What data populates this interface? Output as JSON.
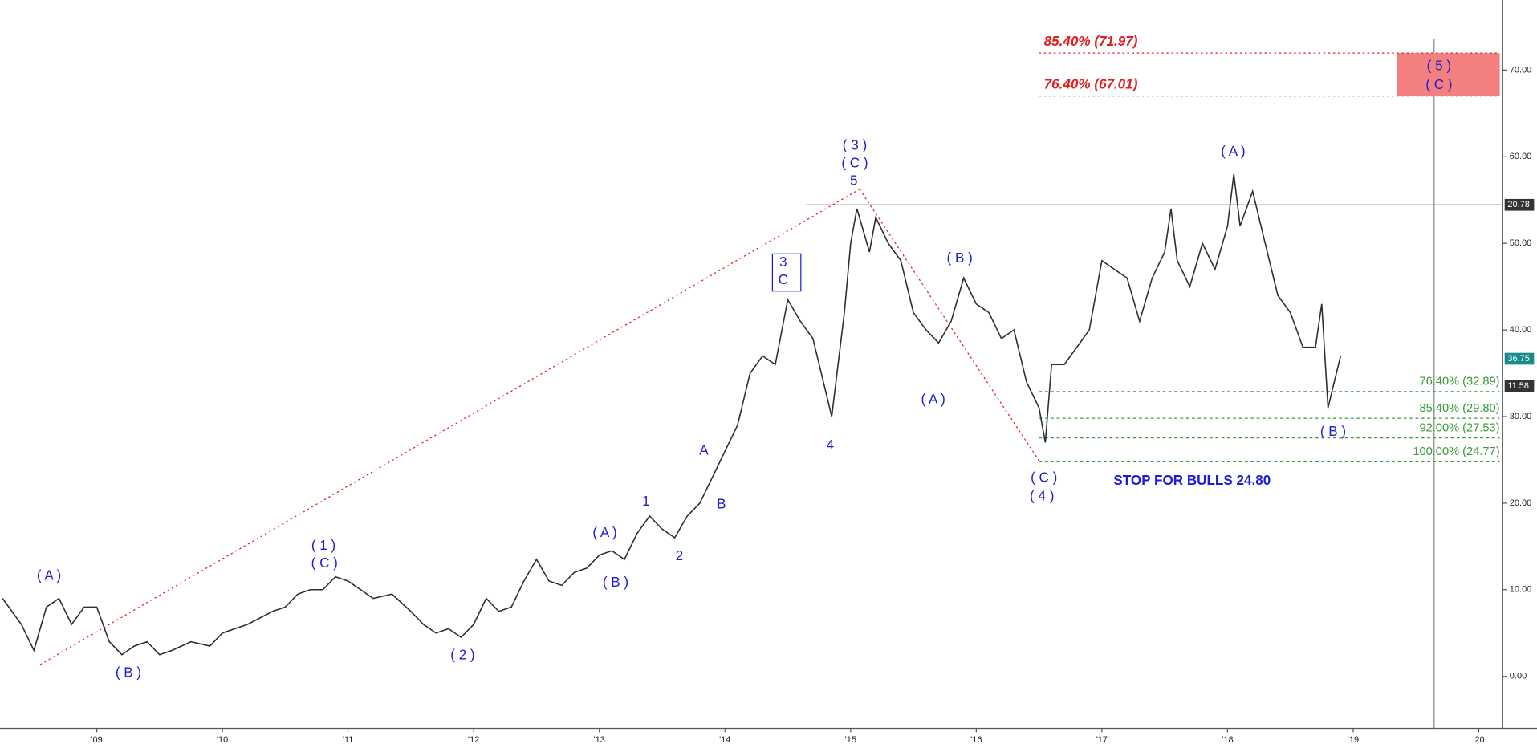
{
  "chart_data": {
    "type": "line",
    "color": "#2e2e2e",
    "x": [
      2008.25,
      2008.4,
      2008.5,
      2008.6,
      2008.7,
      2008.8,
      2008.9,
      2009.0,
      2009.1,
      2009.2,
      2009.3,
      2009.4,
      2009.5,
      2009.6,
      2009.75,
      2009.9,
      2010.0,
      2010.2,
      2010.4,
      2010.5,
      2010.6,
      2010.7,
      2010.8,
      2010.9,
      2011.0,
      2011.1,
      2011.2,
      2011.35,
      2011.5,
      2011.6,
      2011.7,
      2011.8,
      2011.9,
      2012.0,
      2012.1,
      2012.2,
      2012.3,
      2012.4,
      2012.5,
      2012.6,
      2012.7,
      2012.8,
      2012.9,
      2013.0,
      2013.1,
      2013.2,
      2013.3,
      2013.4,
      2013.5,
      2013.6,
      2013.7,
      2013.8,
      2013.9,
      2014.0,
      2014.1,
      2014.2,
      2014.3,
      2014.4,
      2014.5,
      2014.6,
      2014.7,
      2014.8,
      2014.85,
      2014.95,
      2015.0,
      2015.05,
      2015.15,
      2015.2,
      2015.3,
      2015.4,
      2015.5,
      2015.6,
      2015.7,
      2015.8,
      2015.9,
      2016.0,
      2016.1,
      2016.2,
      2016.3,
      2016.4,
      2016.5,
      2016.55,
      2016.6,
      2016.7,
      2016.8,
      2016.9,
      2017.0,
      2017.1,
      2017.2,
      2017.3,
      2017.4,
      2017.5,
      2017.55,
      2017.6,
      2017.7,
      2017.8,
      2017.9,
      2018.0,
      2018.05,
      2018.1,
      2018.2,
      2018.3,
      2018.4,
      2018.5,
      2018.6,
      2018.7,
      2018.75,
      2018.8,
      2018.85,
      2018.9
    ],
    "values": [
      9,
      6,
      3,
      8,
      9,
      6,
      8,
      8,
      4,
      2.5,
      3.5,
      4,
      2.5,
      3,
      4,
      3.5,
      5,
      6,
      7.5,
      8,
      9.5,
      10,
      10,
      11.5,
      11,
      10,
      9,
      9.5,
      7.5,
      6,
      5,
      5.5,
      4.5,
      6,
      9,
      7.5,
      8,
      11,
      13.5,
      11,
      10.5,
      12,
      12.5,
      14,
      14.5,
      13.5,
      16.5,
      18.5,
      17,
      16,
      18.5,
      20,
      23,
      26,
      29,
      35,
      37,
      36,
      43.5,
      41,
      39,
      33,
      30,
      42,
      50,
      54,
      49,
      53,
      50,
      48,
      42,
      40,
      38.5,
      41,
      46,
      43,
      42,
      39,
      40,
      34,
      31,
      27,
      36,
      36,
      38,
      40,
      48,
      47,
      46,
      41,
      46,
      49,
      54,
      48,
      45,
      50,
      47,
      52,
      58,
      52,
      56,
      50,
      44,
      42,
      38,
      38,
      43,
      31,
      34,
      37
    ],
    "xlim": [
      2008.23,
      2020.19
    ],
    "ylim": [
      -6,
      78.1
    ],
    "xticks": [
      {
        "value": 2009,
        "label": "'09"
      },
      {
        "value": 2010,
        "label": "'10"
      },
      {
        "value": 2011,
        "label": "'11"
      },
      {
        "value": 2012,
        "label": "'12"
      },
      {
        "value": 2013,
        "label": "'13"
      },
      {
        "value": 2014,
        "label": "'14"
      },
      {
        "value": 2015,
        "label": "'15"
      },
      {
        "value": 2016,
        "label": "'16"
      },
      {
        "value": 2017,
        "label": "'17"
      },
      {
        "value": 2018,
        "label": "'18"
      },
      {
        "value": 2019,
        "label": "'19"
      },
      {
        "value": 2020,
        "label": "'20"
      }
    ],
    "yticks": [
      {
        "value": 0,
        "label": "0.00"
      },
      {
        "value": 10,
        "label": "10.00"
      },
      {
        "value": 20,
        "label": "20.00"
      },
      {
        "value": 30,
        "label": "30.00"
      },
      {
        "value": 40,
        "label": "40.00"
      },
      {
        "value": 50,
        "label": "50.00"
      },
      {
        "value": 60,
        "label": "60.00"
      },
      {
        "value": 70,
        "label": "70.00"
      }
    ],
    "target_levels": [
      {
        "value": 71.97,
        "label": "85.40% (71.97)"
      },
      {
        "value": 67.01,
        "label": "76.40% (67.01)"
      }
    ],
    "retracement_levels": [
      {
        "value": 32.89,
        "label": "76.40% (32.89)"
      },
      {
        "value": 29.8,
        "label": "85.40% (29.80)"
      },
      {
        "value": 27.53,
        "label": "92.00% (27.53)"
      },
      {
        "value": 24.77,
        "label": "100.00% (24.77)"
      }
    ],
    "wave_labels": [
      "( A )",
      "( B )",
      "( 1 )",
      "( C )",
      "( 2 )",
      "( A )",
      "( B )",
      "1",
      "2",
      "A",
      "B",
      "3",
      "C",
      "4",
      "( 3 )",
      "( C )",
      "5",
      "( A )",
      "( B )",
      "( C )",
      "( 4 )",
      "( A )",
      "( B )",
      "( 5 )",
      "( C )"
    ],
    "price_badges": [
      "20.78",
      "36.75",
      "11.58"
    ],
    "annotation": "STOP FOR BULLS 24.80"
  }
}
